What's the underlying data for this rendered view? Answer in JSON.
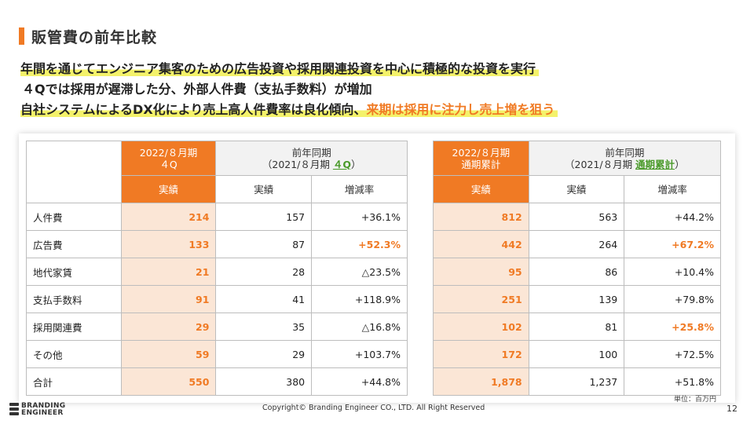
{
  "title": "販管費の前年比較",
  "colors": {
    "accent": "#f07a24",
    "highlight": "#f4f26a",
    "green": "#4a9a2a"
  },
  "lines": {
    "l1": "年間を通じてエンジニア集客のための広告投資や採用関連投資を中心に積極的な投資を実行",
    "l2": "４Qでは採用が遅滞した分、外部人件費（支払手数料）が増加",
    "l3a": "自社システムによるDX化により売上高人件費率は良化傾向、",
    "l3b": "来期は採用に注力し売上増を狙う"
  },
  "left_table": {
    "h_period_line1": "2022/８月期",
    "h_period_line2": "４Q",
    "h_prev_line1": "前年同期",
    "h_prev_line2_pre": "（2021/８月期 ",
    "h_prev_line2_link": "４Q",
    "h_prev_line2_post": "）",
    "sub_actual": "実績",
    "sub_prev_actual": "実績",
    "sub_change": "増減率",
    "rows": [
      {
        "label": "人件費",
        "cur": "214",
        "prev": "157",
        "chg": "+36.1%"
      },
      {
        "label": "広告費",
        "cur": "133",
        "prev": "87",
        "chg": "+52.3%"
      },
      {
        "label": "地代家賃",
        "cur": "21",
        "prev": "28",
        "chg": "△23.5%"
      },
      {
        "label": "支払手数料",
        "cur": "91",
        "prev": "41",
        "chg": "+118.9%"
      },
      {
        "label": "採用関連費",
        "cur": "29",
        "prev": "35",
        "chg": "△16.8%"
      },
      {
        "label": "その他",
        "cur": "59",
        "prev": "29",
        "chg": "+103.7%"
      },
      {
        "label": "合計",
        "cur": "550",
        "prev": "380",
        "chg": "+44.8%"
      }
    ]
  },
  "right_table": {
    "h_period_line1": "2022/８月期",
    "h_period_line2": "通期累計",
    "h_prev_line1": "前年同期",
    "h_prev_line2_pre": "（2021/８月期 ",
    "h_prev_line2_link": "通期累計",
    "h_prev_line2_post": "）",
    "sub_actual": "実績",
    "sub_prev_actual": "実績",
    "sub_change": "増減率",
    "rows": [
      {
        "cur": "812",
        "prev": "563",
        "chg": "+44.2%"
      },
      {
        "cur": "442",
        "prev": "264",
        "chg": "+67.2%"
      },
      {
        "cur": "95",
        "prev": "86",
        "chg": "+10.4%"
      },
      {
        "cur": "251",
        "prev": "139",
        "chg": "+79.8%"
      },
      {
        "cur": "102",
        "prev": "81",
        "chg": "+25.8%"
      },
      {
        "cur": "172",
        "prev": "100",
        "chg": "+72.5%"
      },
      {
        "cur": "1,878",
        "prev": "1,237",
        "chg": "+51.8%"
      }
    ]
  },
  "unit": "単位：百万円",
  "logo": {
    "line1": "BRANDING",
    "line2": "ENGINEER"
  },
  "copyright": "Copyright© Branding Engineer CO., LTD. All Right Reserved",
  "page_number": "12"
}
